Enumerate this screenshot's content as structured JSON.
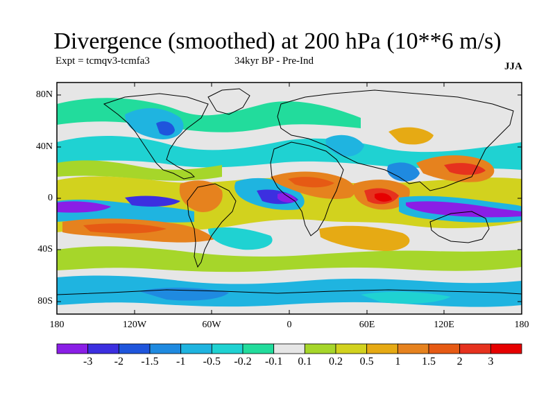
{
  "title": "Divergence (smoothed) at 200 hPa (10**6 m/s)",
  "subtitle_left": "Expt = tcmqv3-tcmfa3",
  "subtitle_center": "34kyr BP - Pre-Ind",
  "season": "JJA",
  "map": {
    "lat_ticks": [
      "80N",
      "40N",
      "0",
      "40S",
      "80S"
    ],
    "lon_ticks": [
      "180",
      "120W",
      "60W",
      "0",
      "60E",
      "120E",
      "180"
    ]
  },
  "colorbar": {
    "labels": [
      "-3",
      "-2",
      "-1.5",
      "-1",
      "-0.5",
      "-0.2",
      "-0.1",
      "0.1",
      "0.2",
      "0.5",
      "1",
      "1.5",
      "2",
      "3"
    ],
    "colors": [
      "#8a1ee6",
      "#3c2fe0",
      "#1f55dc",
      "#1f8ae0",
      "#1fb4e0",
      "#1fd2d2",
      "#22dc9c",
      "#e6e6e6",
      "#a6d62a",
      "#d2d21e",
      "#e6aa14",
      "#e6821e",
      "#e65a14",
      "#e6321e",
      "#e60000"
    ]
  }
}
